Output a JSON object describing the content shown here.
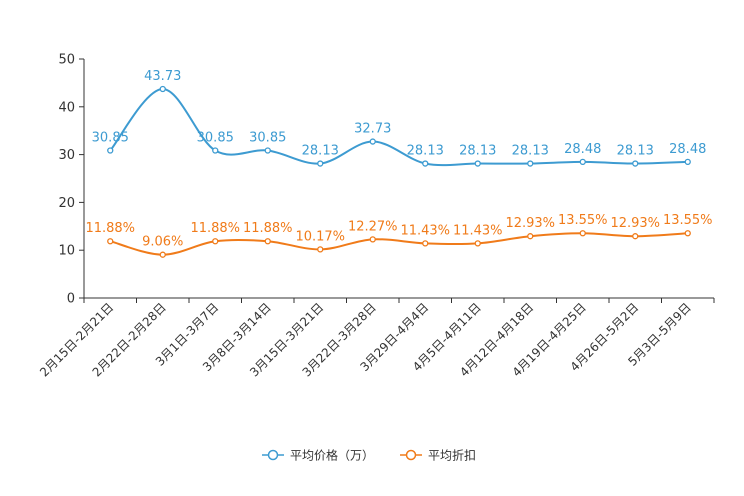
{
  "chart_data": {
    "type": "line",
    "title": "",
    "xlabel": "",
    "ylabel": "",
    "ylim": [
      0,
      50
    ],
    "yticks": [
      0,
      10,
      20,
      30,
      40,
      50
    ],
    "categories": [
      "2月15日-2月21日",
      "2月22日-2月28日",
      "3月1日-3月7日",
      "3月8日-3月14日",
      "3月15日-3月21日",
      "3月22日-3月28日",
      "3月29日-4月4日",
      "4月5日-4月11日",
      "4月12日-4月18日",
      "4月19日-4月25日",
      "4月26日-5月2日",
      "5月3日-5月9日"
    ],
    "series": [
      {
        "name": "平均价格（万）",
        "color": "#3d9bd1",
        "values": [
          30.85,
          43.73,
          30.85,
          30.85,
          28.13,
          32.73,
          28.13,
          28.13,
          28.13,
          28.48,
          28.13,
          28.48
        ],
        "labels": [
          "30.85",
          "43.73",
          "30.85",
          "30.85",
          "28.13",
          "32.73",
          "28.13",
          "28.13",
          "28.13",
          "28.48",
          "28.13",
          "28.48"
        ]
      },
      {
        "name": "平均折扣",
        "color": "#f07b1a",
        "values": [
          11.88,
          9.06,
          11.88,
          11.88,
          10.17,
          12.27,
          11.43,
          11.43,
          12.93,
          13.55,
          12.93,
          13.55
        ],
        "labels": [
          "11.88%",
          "9.06%",
          "11.88%",
          "11.88%",
          "10.17%",
          "12.27%",
          "11.43%",
          "11.43%",
          "12.93%",
          "13.55%",
          "12.93%",
          "13.55%"
        ]
      }
    ],
    "legend_position": "bottom-center"
  }
}
